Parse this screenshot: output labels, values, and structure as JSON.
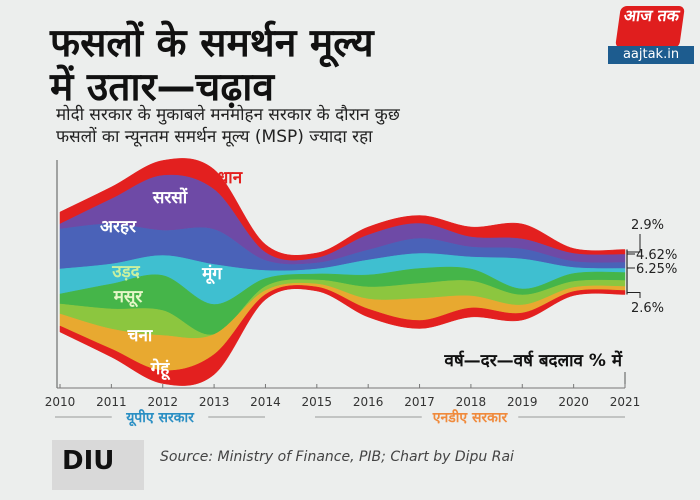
{
  "header": {
    "title_line1": "फसलों के समर्थन मूल्य",
    "title_line2": "में उतार—चढ़ाव",
    "subtitle_line1": "मोदी सरकार के मुकाबले मनमोहन सरकार के दौरान कुछ",
    "subtitle_line2": "फसलों का न्यूनतम समर्थन मूल्य (MSP) ज्यादा रहा"
  },
  "logo": {
    "top": "आज तक",
    "bottom": "aajtak.in"
  },
  "chart_data": {
    "type": "area",
    "subtype": "streamgraph",
    "title": "फसलों के समर्थन मूल्य में उतार—चढ़ाव",
    "annotation": "वर्ष—दर—वर्ष बदलाव % में",
    "x": [
      "2010",
      "2011",
      "2012",
      "2013",
      "2014",
      "2015",
      "2016",
      "2017",
      "2018",
      "2019",
      "2020",
      "2021"
    ],
    "series": [
      {
        "name": "धान",
        "color": "#e3201f",
        "label_color": "#e3201f",
        "values": [
          12,
          12,
          15,
          20,
          8,
          5,
          8,
          8,
          10,
          15,
          5,
          5
        ]
      },
      {
        "name": "सरसों",
        "color": "#6e4aa6",
        "label_color": "#ffffff",
        "values": [
          5,
          25,
          55,
          40,
          8,
          5,
          15,
          15,
          10,
          10,
          8,
          8
        ]
      },
      {
        "name": "अरहर",
        "color": "#4a62b8",
        "label_color": "#ffffff",
        "values": [
          40,
          40,
          25,
          35,
          10,
          6,
          10,
          15,
          10,
          10,
          6,
          6
        ]
      },
      {
        "name": "मूंग",
        "color": "#3fbfd0",
        "label_color": "#ffffff",
        "values": [
          25,
          20,
          20,
          40,
          8,
          5,
          15,
          15,
          12,
          30,
          6,
          4
        ]
      },
      {
        "name": "उड़द",
        "color": "#45b549",
        "label_color": "#c8f0a0",
        "values": [
          10,
          25,
          35,
          30,
          8,
          6,
          12,
          15,
          12,
          6,
          8,
          8
        ]
      },
      {
        "name": "मसूर",
        "color": "#8cc63f",
        "label_color": "#e6f7c8",
        "values": [
          10,
          20,
          25,
          0,
          4,
          4,
          12,
          15,
          15,
          10,
          6,
          6
        ]
      },
      {
        "name": "चना",
        "color": "#e8a930",
        "label_color": "#ffffff",
        "values": [
          12,
          20,
          35,
          20,
          4,
          3,
          10,
          22,
          12,
          8,
          4,
          4
        ]
      },
      {
        "name": "गेहूं",
        "color": "#e3201f",
        "label_color": "#ffffff",
        "values": [
          6,
          8,
          13,
          20,
          5,
          4,
          8,
          8,
          9,
          7,
          4,
          4
        ]
      }
    ],
    "end_labels": [
      "2.9%",
      "4.62%",
      "6.25%",
      "2.6%"
    ],
    "periods": [
      {
        "label": "यूपीए सरकार",
        "color": "#2a8fc4"
      },
      {
        "label": "एनडीए सरकार",
        "color": "#f08a3c"
      }
    ],
    "grid": false,
    "legend": "inline"
  },
  "footer": {
    "logo_text": "DIU",
    "source": "Source: Ministry of Finance, PIB; Chart by Dipu Rai"
  }
}
